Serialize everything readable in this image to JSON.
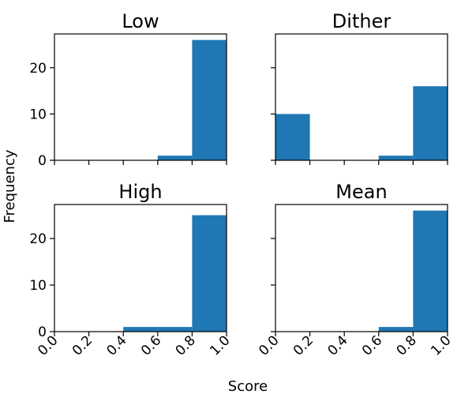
{
  "chart_data": [
    {
      "type": "bar",
      "title": "Low",
      "bin_edges": [
        0.0,
        0.2,
        0.4,
        0.6,
        0.8,
        1.0
      ],
      "values": [
        0,
        0,
        0,
        1,
        26
      ],
      "xlim": [
        0.0,
        1.0
      ],
      "ylim": [
        0,
        27.3
      ],
      "yticks": [
        0,
        10,
        20
      ],
      "show_x_tick_labels": false,
      "show_y_tick_labels": true
    },
    {
      "type": "bar",
      "title": "Dither",
      "bin_edges": [
        0.0,
        0.2,
        0.4,
        0.6,
        0.8,
        1.0
      ],
      "values": [
        10,
        0,
        0,
        1,
        16
      ],
      "xlim": [
        0.0,
        1.0
      ],
      "ylim": [
        0,
        27.3
      ],
      "yticks": [
        0,
        10,
        20
      ],
      "show_x_tick_labels": false,
      "show_y_tick_labels": false
    },
    {
      "type": "bar",
      "title": "High",
      "bin_edges": [
        0.0,
        0.2,
        0.4,
        0.6,
        0.8,
        1.0
      ],
      "values": [
        0,
        0,
        1,
        1,
        25
      ],
      "xlim": [
        0.0,
        1.0
      ],
      "ylim": [
        0,
        27.3
      ],
      "yticks": [
        0,
        10,
        20
      ],
      "show_x_tick_labels": true,
      "show_y_tick_labels": true
    },
    {
      "type": "bar",
      "title": "Mean",
      "bin_edges": [
        0.0,
        0.2,
        0.4,
        0.6,
        0.8,
        1.0
      ],
      "values": [
        0,
        0,
        0,
        1,
        26
      ],
      "xlim": [
        0.0,
        1.0
      ],
      "ylim": [
        0,
        27.3
      ],
      "yticks": [
        0,
        10,
        20
      ],
      "show_x_tick_labels": true,
      "show_y_tick_labels": false
    }
  ],
  "xticks": [
    "0.0",
    "0.2",
    "0.4",
    "0.6",
    "0.8",
    "1.0"
  ],
  "xlabel": "Score",
  "ylabel": "Frequency",
  "bar_color": "#1f77b4",
  "grid": false
}
